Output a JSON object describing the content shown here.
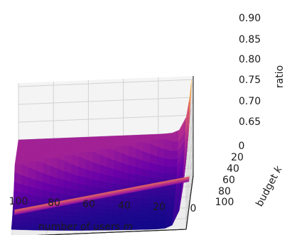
{
  "chart_data": {
    "type": "surface3d",
    "title": "",
    "xlabel": "number of users m",
    "xlabel_main": "number of users ",
    "xlabel_var": "m",
    "ylabel": "budget k",
    "ylabel_main": "budget ",
    "ylabel_var": "k",
    "zlabel": "ratio",
    "x_ticks": [
      "100",
      "80",
      "60",
      "40",
      "20",
      "0"
    ],
    "y_ticks": [
      "0",
      "20",
      "40",
      "60",
      "80",
      "100"
    ],
    "z_ticks": [
      "0.65",
      "0.70",
      "0.75",
      "0.80",
      "0.85",
      "0.90"
    ],
    "x_range": [
      0,
      100
    ],
    "y_range": [
      0,
      100
    ],
    "z_range": [
      0.63,
      0.91
    ],
    "surface": {
      "plateau_ratio": 0.75,
      "peak_ratio": 0.9,
      "colormap": "plasma",
      "contour_levels": [
        0.72,
        0.73,
        0.735,
        0.74,
        0.745,
        0.75,
        0.755,
        0.76,
        0.77,
        0.78,
        0.79,
        0.8,
        0.81,
        0.82,
        0.83
      ]
    },
    "grid": true,
    "legend": "none"
  }
}
